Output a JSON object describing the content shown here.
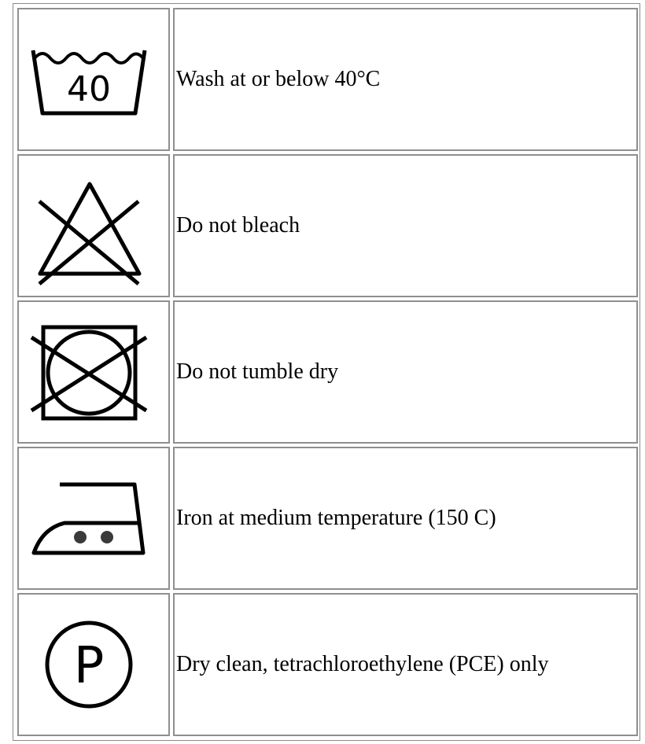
{
  "colors": {
    "ink": "#000000",
    "border": "#8f8f8f",
    "dot": "#3a3a3a"
  },
  "rows": [
    {
      "icon": "wash-40-icon",
      "icon_text": "40",
      "label": "Wash at or below 40°C"
    },
    {
      "icon": "do-not-bleach-icon",
      "label": "Do not bleach"
    },
    {
      "icon": "do-not-tumble-dry-icon",
      "label": "Do not tumble dry"
    },
    {
      "icon": "iron-medium-icon",
      "label": "Iron at medium temperature (150 C)"
    },
    {
      "icon": "dry-clean-p-icon",
      "icon_text": "P",
      "label": "Dry clean, tetrachloroethylene (PCE) only"
    }
  ]
}
